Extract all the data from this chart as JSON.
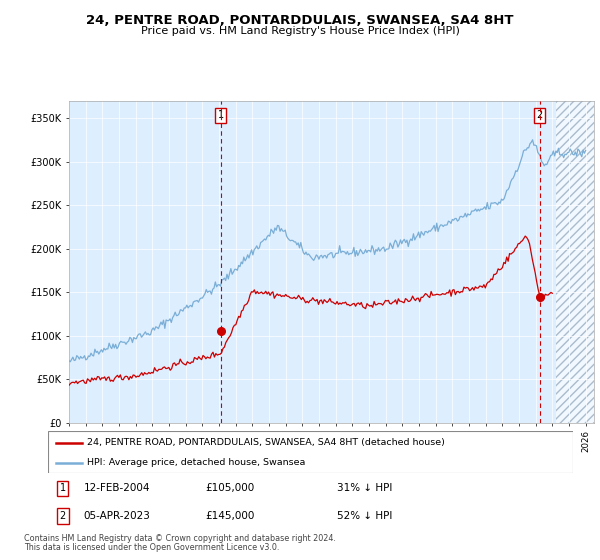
{
  "title": "24, PENTRE ROAD, PONTARDDULAIS, SWANSEA, SA4 8HT",
  "subtitle": "Price paid vs. HM Land Registry's House Price Index (HPI)",
  "hpi_color": "#7aaed6",
  "price_color": "#cc0000",
  "bg_color": "#ddeeff",
  "annotation1": {
    "label": "1",
    "date": "12-FEB-2004",
    "price": 105000,
    "pct": "31%",
    "x_year": 2004.1
  },
  "annotation2": {
    "label": "2",
    "date": "05-APR-2023",
    "price": 145000,
    "pct": "52%",
    "x_year": 2023.25
  },
  "legend_line1": "24, PENTRE ROAD, PONTARDDULAIS, SWANSEA, SA4 8HT (detached house)",
  "legend_line2": "HPI: Average price, detached house, Swansea",
  "footer1": "Contains HM Land Registry data © Crown copyright and database right 2024.",
  "footer2": "This data is licensed under the Open Government Licence v3.0.",
  "ylim": [
    0,
    370000
  ],
  "xlim_start": 1995.0,
  "xlim_end": 2026.5,
  "hatch_start": 2024.25
}
